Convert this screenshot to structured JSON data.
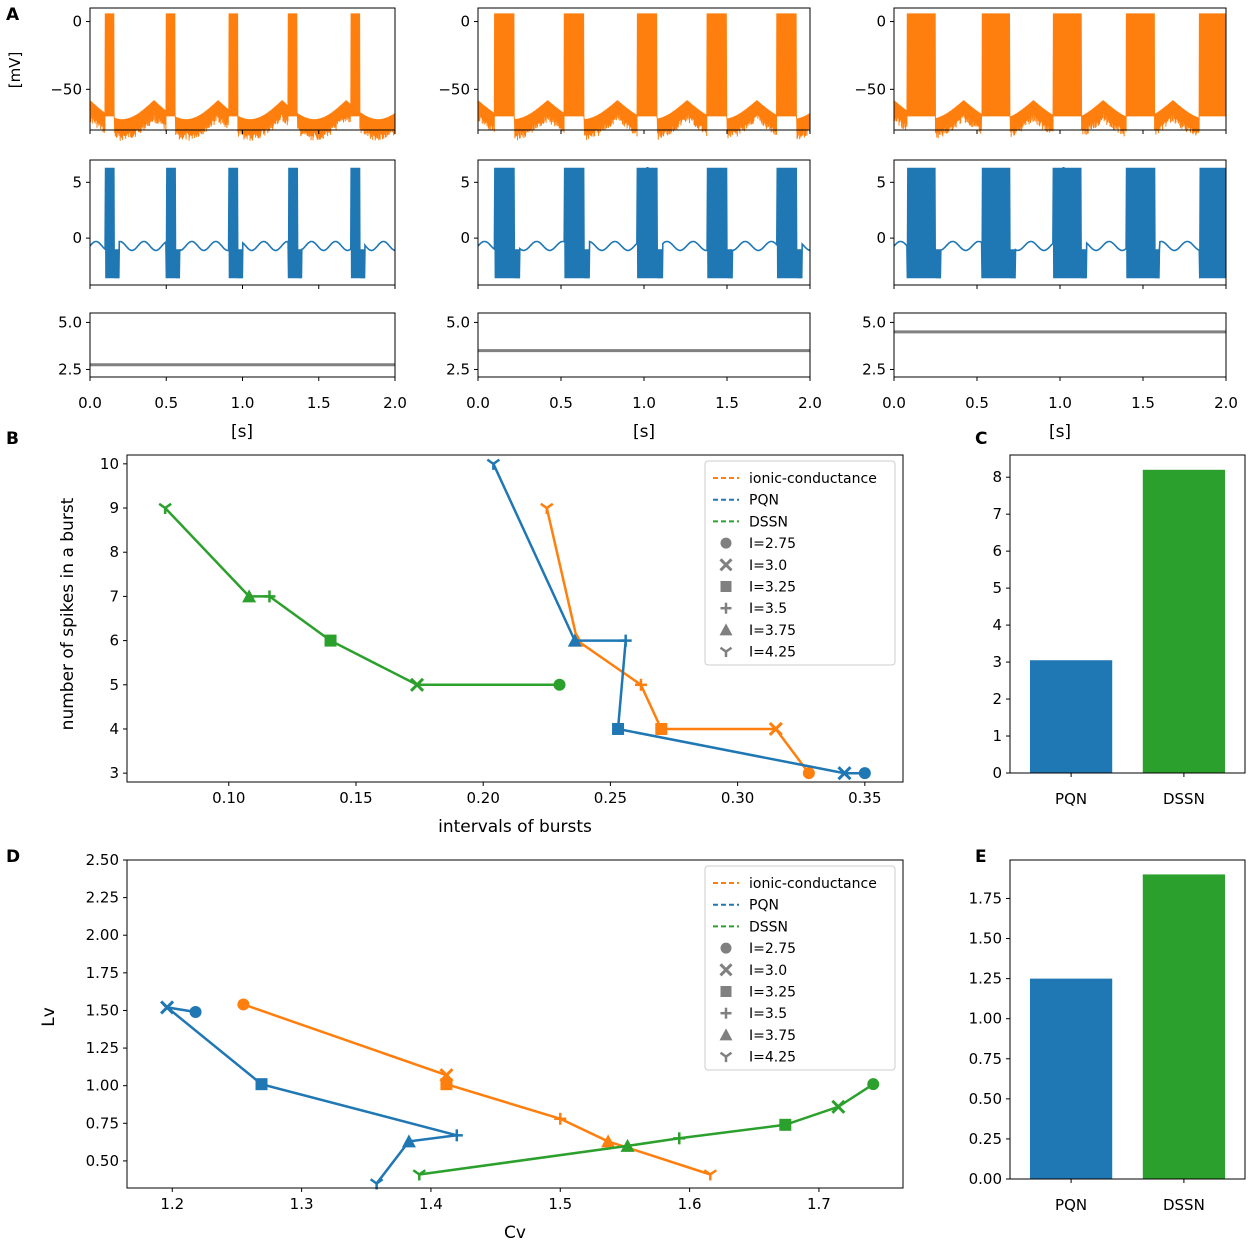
{
  "colors": {
    "orange": "#ff7f0e",
    "blue": "#1f77b4",
    "green": "#2ca02c",
    "gray": "#808080"
  },
  "panels": {
    "A": {
      "letter": "A",
      "xlabel": "[s]",
      "ylabel_mv": "[mV]",
      "xticks": [
        "0.0",
        "0.5",
        "1.0",
        "1.5",
        "2.0"
      ],
      "row1_yticks": [
        "0",
        "−50"
      ],
      "row2_yticks": [
        "5",
        "0"
      ],
      "row3_yticks": [
        "5.0",
        "2.5"
      ],
      "columns": [
        {
          "current": 2.75,
          "bursts_t": [
            0.1,
            0.5,
            0.91,
            1.3,
            1.71
          ],
          "spikes": 4,
          "burst_dur": 0.06
        },
        {
          "current": 3.5,
          "bursts_t": [
            0.1,
            0.52,
            0.96,
            1.38,
            1.8
          ],
          "spikes": 7,
          "burst_dur": 0.12
        },
        {
          "current": 4.5,
          "bursts_t": [
            0.08,
            0.53,
            0.96,
            1.4,
            1.84
          ],
          "spikes": 12,
          "burst_dur": 0.17
        }
      ]
    },
    "B": {
      "letter": "B",
      "chart_data": {
        "type": "line",
        "xlabel": "intervals of bursts",
        "ylabel": "number of spikes in a burst",
        "xlim": [
          0.06,
          0.365
        ],
        "ylim": [
          2.8,
          10.2
        ],
        "xticks": [
          "0.10",
          "0.15",
          "0.20",
          "0.25",
          "0.30",
          "0.35"
        ],
        "yticks": [
          "3",
          "4",
          "5",
          "6",
          "7",
          "8",
          "9",
          "10"
        ],
        "series": [
          {
            "name": "ionic-conductance",
            "color": "orange",
            "points": [
              {
                "x": 0.328,
                "y": 3,
                "m": "circle"
              },
              {
                "x": 0.315,
                "y": 4,
                "m": "x"
              },
              {
                "x": 0.27,
                "y": 4,
                "m": "square"
              },
              {
                "x": 0.262,
                "y": 5,
                "m": "plus"
              },
              {
                "x": 0.237,
                "y": 6,
                "m": "triangle"
              },
              {
                "x": 0.225,
                "y": 9,
                "m": "tri_down"
              }
            ]
          },
          {
            "name": "PQN",
            "color": "blue",
            "points": [
              {
                "x": 0.35,
                "y": 3,
                "m": "circle"
              },
              {
                "x": 0.342,
                "y": 3,
                "m": "x"
              },
              {
                "x": 0.253,
                "y": 4,
                "m": "square"
              },
              {
                "x": 0.256,
                "y": 6,
                "m": "plus"
              },
              {
                "x": 0.236,
                "y": 6,
                "m": "triangle"
              },
              {
                "x": 0.204,
                "y": 10,
                "m": "tri_down"
              }
            ]
          },
          {
            "name": "DSSN",
            "color": "green",
            "points": [
              {
                "x": 0.23,
                "y": 5,
                "m": "circle"
              },
              {
                "x": 0.174,
                "y": 5,
                "m": "x"
              },
              {
                "x": 0.14,
                "y": 6,
                "m": "square"
              },
              {
                "x": 0.116,
                "y": 7,
                "m": "plus"
              },
              {
                "x": 0.108,
                "y": 7,
                "m": "triangle"
              },
              {
                "x": 0.075,
                "y": 9,
                "m": "tri_down"
              }
            ]
          }
        ],
        "legend_series": [
          "ionic-conductance",
          "PQN",
          "DSSN"
        ],
        "legend_markers": [
          {
            "label": "I=2.75",
            "m": "circle"
          },
          {
            "label": "I=3.0",
            "m": "x"
          },
          {
            "label": "I=3.25",
            "m": "square"
          },
          {
            "label": "I=3.5",
            "m": "plus"
          },
          {
            "label": "I=3.75",
            "m": "triangle"
          },
          {
            "label": "I=4.25",
            "m": "tri_down"
          }
        ],
        "legend_loc": "top-right"
      }
    },
    "C": {
      "letter": "C",
      "chart_data": {
        "type": "bar",
        "categories": [
          "PQN",
          "DSSN"
        ],
        "values": [
          3.05,
          8.2
        ],
        "colors": [
          "blue",
          "green"
        ],
        "ylim": [
          0,
          8.6
        ],
        "yticks": [
          "0",
          "1",
          "2",
          "3",
          "4",
          "5",
          "6",
          "7",
          "8"
        ]
      }
    },
    "D": {
      "letter": "D",
      "chart_data": {
        "type": "line",
        "xlabel": "Cv",
        "ylabel": "Lv",
        "xlim": [
          1.165,
          1.765
        ],
        "ylim": [
          0.32,
          2.5
        ],
        "xticks": [
          "1.2",
          "1.3",
          "1.4",
          "1.5",
          "1.6",
          "1.7"
        ],
        "yticks": [
          "0.50",
          "0.75",
          "1.00",
          "1.25",
          "1.50",
          "1.75",
          "2.00",
          "2.25",
          "2.50"
        ],
        "series": [
          {
            "name": "ionic-conductance",
            "color": "orange",
            "points": [
              {
                "x": 1.255,
                "y": 1.54,
                "m": "circle"
              },
              {
                "x": 1.412,
                "y": 1.07,
                "m": "x"
              },
              {
                "x": 1.412,
                "y": 1.01,
                "m": "square"
              },
              {
                "x": 1.5,
                "y": 0.78,
                "m": "plus"
              },
              {
                "x": 1.537,
                "y": 0.63,
                "m": "triangle"
              },
              {
                "x": 1.616,
                "y": 0.41,
                "m": "tri_down"
              }
            ]
          },
          {
            "name": "PQN",
            "color": "blue",
            "points": [
              {
                "x": 1.218,
                "y": 1.49,
                "m": "circle"
              },
              {
                "x": 1.196,
                "y": 1.52,
                "m": "x"
              },
              {
                "x": 1.269,
                "y": 1.01,
                "m": "square"
              },
              {
                "x": 1.42,
                "y": 0.67,
                "m": "plus"
              },
              {
                "x": 1.383,
                "y": 0.63,
                "m": "triangle"
              },
              {
                "x": 1.358,
                "y": 0.35,
                "m": "tri_down"
              }
            ]
          },
          {
            "name": "DSSN",
            "color": "green",
            "points": [
              {
                "x": 1.742,
                "y": 1.01,
                "m": "circle"
              },
              {
                "x": 1.715,
                "y": 0.86,
                "m": "x"
              },
              {
                "x": 1.674,
                "y": 0.74,
                "m": "square"
              },
              {
                "x": 1.592,
                "y": 0.65,
                "m": "plus"
              },
              {
                "x": 1.552,
                "y": 0.6,
                "m": "triangle"
              },
              {
                "x": 1.391,
                "y": 0.41,
                "m": "tri_down"
              }
            ]
          }
        ],
        "legend_series": [
          "ionic-conductance",
          "PQN",
          "DSSN"
        ],
        "legend_markers": [
          {
            "label": "I=2.75",
            "m": "circle"
          },
          {
            "label": "I=3.0",
            "m": "x"
          },
          {
            "label": "I=3.25",
            "m": "square"
          },
          {
            "label": "I=3.5",
            "m": "plus"
          },
          {
            "label": "I=3.75",
            "m": "triangle"
          },
          {
            "label": "I=4.25",
            "m": "tri_down"
          }
        ],
        "legend_loc": "top-right"
      }
    },
    "E": {
      "letter": "E",
      "chart_data": {
        "type": "bar",
        "categories": [
          "PQN",
          "DSSN"
        ],
        "values": [
          1.25,
          1.9
        ],
        "colors": [
          "blue",
          "green"
        ],
        "ylim": [
          0,
          1.99
        ],
        "yticks": [
          "0.00",
          "0.25",
          "0.50",
          "0.75",
          "1.00",
          "1.25",
          "1.50",
          "1.75"
        ]
      }
    }
  }
}
